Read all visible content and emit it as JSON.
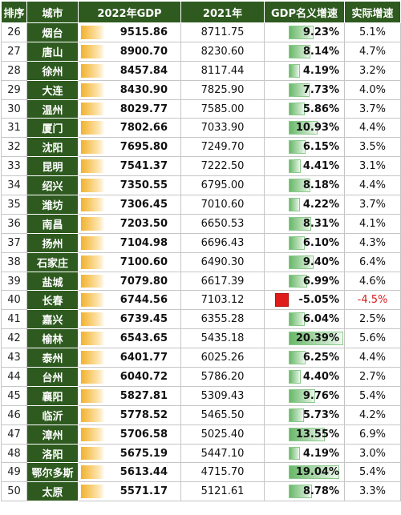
{
  "headers": [
    "排序",
    "城市",
    "2022年GDP",
    "2021年",
    "GDP名义增速",
    "实际增速"
  ],
  "rows": [
    {
      "rank": "26",
      "city": "烟台",
      "gdp2022": "9515.86",
      "gdp2021": "8711.75",
      "nominal": "9.23%",
      "nominal_value": 9.23,
      "real": "5.1%"
    },
    {
      "rank": "27",
      "city": "唐山",
      "gdp2022": "8900.70",
      "gdp2021": "8230.60",
      "nominal": "8.14%",
      "nominal_value": 8.14,
      "real": "4.7%"
    },
    {
      "rank": "28",
      "city": "徐州",
      "gdp2022": "8457.84",
      "gdp2021": "8117.44",
      "nominal": "4.19%",
      "nominal_value": 4.19,
      "real": "3.2%"
    },
    {
      "rank": "29",
      "city": "大连",
      "gdp2022": "8430.90",
      "gdp2021": "7825.90",
      "nominal": "7.73%",
      "nominal_value": 7.73,
      "real": "4.0%"
    },
    {
      "rank": "30",
      "city": "温州",
      "gdp2022": "8029.77",
      "gdp2021": "7585.00",
      "nominal": "5.86%",
      "nominal_value": 5.86,
      "real": "3.7%"
    },
    {
      "rank": "31",
      "city": "厦门",
      "gdp2022": "7802.66",
      "gdp2021": "7033.90",
      "nominal": "10.93%",
      "nominal_value": 10.93,
      "real": "4.4%"
    },
    {
      "rank": "32",
      "city": "沈阳",
      "gdp2022": "7695.80",
      "gdp2021": "7249.70",
      "nominal": "6.15%",
      "nominal_value": 6.15,
      "real": "3.5%"
    },
    {
      "rank": "33",
      "city": "昆明",
      "gdp2022": "7541.37",
      "gdp2021": "7222.50",
      "nominal": "4.41%",
      "nominal_value": 4.41,
      "real": "3.1%"
    },
    {
      "rank": "34",
      "city": "绍兴",
      "gdp2022": "7350.55",
      "gdp2021": "6795.00",
      "nominal": "8.18%",
      "nominal_value": 8.18,
      "real": "4.4%"
    },
    {
      "rank": "35",
      "city": "潍坊",
      "gdp2022": "7306.45",
      "gdp2021": "7010.60",
      "nominal": "4.22%",
      "nominal_value": 4.22,
      "real": "3.7%"
    },
    {
      "rank": "36",
      "city": "南昌",
      "gdp2022": "7203.50",
      "gdp2021": "6650.53",
      "nominal": "8.31%",
      "nominal_value": 8.31,
      "real": "4.1%"
    },
    {
      "rank": "37",
      "city": "扬州",
      "gdp2022": "7104.98",
      "gdp2021": "6696.43",
      "nominal": "6.10%",
      "nominal_value": 6.1,
      "real": "4.3%"
    },
    {
      "rank": "38",
      "city": "石家庄",
      "gdp2022": "7100.60",
      "gdp2021": "6490.30",
      "nominal": "9.40%",
      "nominal_value": 9.4,
      "real": "6.4%"
    },
    {
      "rank": "39",
      "city": "盐城",
      "gdp2022": "7079.80",
      "gdp2021": "6617.39",
      "nominal": "6.99%",
      "nominal_value": 6.99,
      "real": "4.6%"
    },
    {
      "rank": "40",
      "city": "长春",
      "gdp2022": "6744.56",
      "gdp2021": "7103.12",
      "nominal": "-5.05%",
      "nominal_value": -5.05,
      "real": "-4.5%"
    },
    {
      "rank": "41",
      "city": "嘉兴",
      "gdp2022": "6739.45",
      "gdp2021": "6355.28",
      "nominal": "6.04%",
      "nominal_value": 6.04,
      "real": "2.5%"
    },
    {
      "rank": "42",
      "city": "榆林",
      "gdp2022": "6543.65",
      "gdp2021": "5435.18",
      "nominal": "20.39%",
      "nominal_value": 20.39,
      "real": "5.6%"
    },
    {
      "rank": "43",
      "city": "泰州",
      "gdp2022": "6401.77",
      "gdp2021": "6025.26",
      "nominal": "6.25%",
      "nominal_value": 6.25,
      "real": "4.4%"
    },
    {
      "rank": "44",
      "city": "台州",
      "gdp2022": "6040.72",
      "gdp2021": "5786.20",
      "nominal": "4.40%",
      "nominal_value": 4.4,
      "real": "2.7%"
    },
    {
      "rank": "45",
      "city": "襄阳",
      "gdp2022": "5827.81",
      "gdp2021": "5309.43",
      "nominal": "9.76%",
      "nominal_value": 9.76,
      "real": "5.4%"
    },
    {
      "rank": "46",
      "city": "临沂",
      "gdp2022": "5778.52",
      "gdp2021": "5465.50",
      "nominal": "5.73%",
      "nominal_value": 5.73,
      "real": "4.2%"
    },
    {
      "rank": "47",
      "city": "漳州",
      "gdp2022": "5706.58",
      "gdp2021": "5025.40",
      "nominal": "13.55%",
      "nominal_value": 13.55,
      "real": "6.9%"
    },
    {
      "rank": "48",
      "city": "洛阳",
      "gdp2022": "5675.19",
      "gdp2021": "5447.10",
      "nominal": "4.19%",
      "nominal_value": 4.19,
      "real": "3.0%"
    },
    {
      "rank": "49",
      "city": "鄂尔多斯",
      "gdp2022": "5613.44",
      "gdp2021": "4715.70",
      "nominal": "19.04%",
      "nominal_value": 19.04,
      "real": "5.4%"
    },
    {
      "rank": "50",
      "city": "太原",
      "gdp2022": "5571.17",
      "gdp2021": "5121.61",
      "nominal": "8.78%",
      "nominal_value": 8.78,
      "real": "3.3%"
    }
  ],
  "colors": {
    "header_bg": "#2e5a1f",
    "gdp_bar": "#f2b12c",
    "growth_bar": "#68b868",
    "negative": "#e01b1b"
  }
}
